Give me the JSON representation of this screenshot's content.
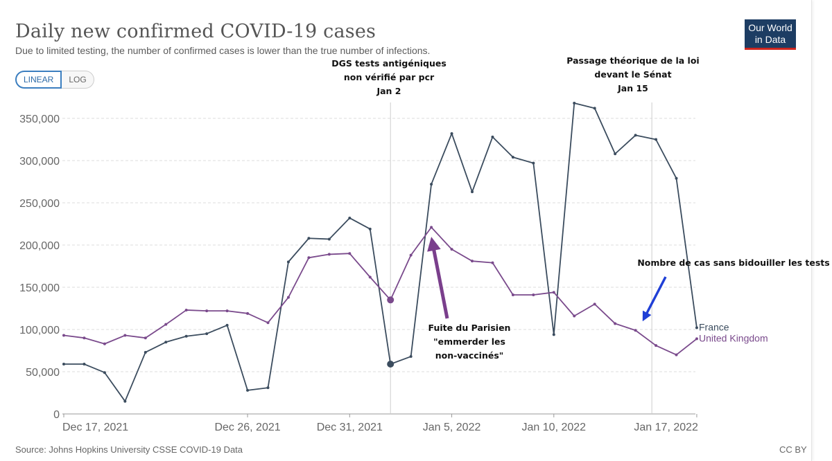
{
  "header": {
    "title": "Daily new confirmed COVID-19 cases",
    "subtitle": "Due to limited testing, the number of confirmed cases is lower than the true number of infections."
  },
  "logo": {
    "line1": "Our World",
    "line2": "in Data"
  },
  "scale_toggle": {
    "linear": "LINEAR",
    "log": "LOG"
  },
  "footer": {
    "source": "Source: Johns Hopkins University CSSE COVID-19 Data",
    "license": "CC BY"
  },
  "colors": {
    "france": "#3b4c5e",
    "uk": "#7a4a8c",
    "grid": "#dddddd",
    "blue_arrow": "#1f3fd6",
    "purple_arrow": "#7a3f8c"
  },
  "chart_data": {
    "type": "line",
    "title": "Daily new confirmed COVID-19 cases",
    "xlabel": "",
    "ylabel": "",
    "ylim": [
      0,
      350000
    ],
    "yticks": [
      0,
      50000,
      100000,
      150000,
      200000,
      250000,
      300000,
      350000
    ],
    "ytick_labels": [
      "0",
      "50,000",
      "100,000",
      "150,000",
      "200,000",
      "250,000",
      "300,000",
      "350,000"
    ],
    "xtick_labels": [
      "Dec 17, 2021",
      "Dec 26, 2021",
      "Dec 31, 2021",
      "Jan 5, 2022",
      "Jan 10, 2022",
      "Jan 17, 2022"
    ],
    "x_start": "Dec 17, 2021",
    "x_end": "Jan 17, 2022",
    "series": [
      {
        "name": "France",
        "values": [
          59000,
          59000,
          49000,
          15000,
          73000,
          85000,
          92000,
          95000,
          105000,
          28000,
          31000,
          180000,
          208000,
          207000,
          232000,
          219000,
          59000,
          68000,
          272000,
          332000,
          263000,
          328000,
          304000,
          297000,
          94000,
          368000,
          362000,
          308000,
          330000,
          325000,
          279000,
          102000
        ]
      },
      {
        "name": "United Kingdom",
        "values": [
          93000,
          90000,
          83000,
          93000,
          90000,
          106000,
          123000,
          122000,
          122000,
          119000,
          108000,
          138000,
          185000,
          189000,
          190000,
          162000,
          135000,
          188000,
          221000,
          195000,
          181000,
          179000,
          141000,
          141000,
          144000,
          116000,
          130000,
          107000,
          99000,
          81000,
          70000,
          89000
        ]
      }
    ],
    "highlighted_points": [
      {
        "series": "France",
        "date": "Jan 2",
        "value": 59000
      },
      {
        "series": "United Kingdom",
        "date": "Jan 2",
        "value": 135000
      }
    ],
    "annotations": [
      {
        "lines": [
          "DGS tests antigéniques",
          "non vérifié par pcr",
          "Jan 2"
        ]
      },
      {
        "lines": [
          "Passage théorique de la loi",
          "devant le Sénat",
          "Jan 15"
        ]
      },
      {
        "lines": [
          "Fuite du Parisien",
          "\"emmerder les",
          "non-vaccinés\""
        ]
      },
      {
        "lines": [
          "Nombre de cas sans bidouiller les tests"
        ]
      }
    ]
  }
}
